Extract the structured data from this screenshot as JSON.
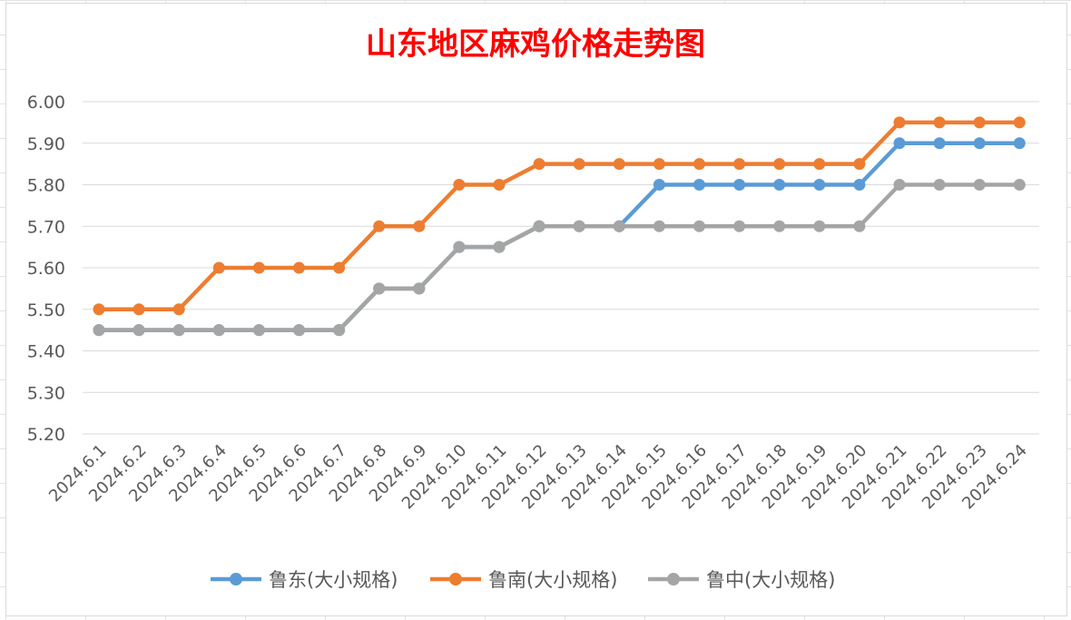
{
  "chart_data": {
    "type": "line",
    "title": "山东地区麻鸡价格走势图",
    "title_color": "#ff0000",
    "xlabel": "",
    "ylabel": "",
    "ylim": [
      5.2,
      6.0
    ],
    "yticks": [
      "5.20",
      "5.30",
      "5.40",
      "5.50",
      "5.60",
      "5.70",
      "5.80",
      "5.90",
      "6.00"
    ],
    "grid": true,
    "legend_position": "bottom",
    "categories": [
      "2024.6.1",
      "2024.6.2",
      "2024.6.3",
      "2024.6.4",
      "2024.6.5",
      "2024.6.6",
      "2024.6.7",
      "2024.6.8",
      "2024.6.9",
      "2024.6.10",
      "2024.6.11",
      "2024.6.12",
      "2024.6.13",
      "2024.6.14",
      "2024.6.15",
      "2024.6.16",
      "2024.6.17",
      "2024.6.18",
      "2024.6.19",
      "2024.6.20",
      "2024.6.21",
      "2024.6.22",
      "2024.6.23",
      "2024.6.24"
    ],
    "series": [
      {
        "name": "鲁东(大小规格)",
        "color": "#5b9bd5",
        "values": [
          5.45,
          5.45,
          5.45,
          5.45,
          5.45,
          5.45,
          5.45,
          5.55,
          5.55,
          5.65,
          5.65,
          5.7,
          5.7,
          5.7,
          5.8,
          5.8,
          5.8,
          5.8,
          5.8,
          5.8,
          5.9,
          5.9,
          5.9,
          5.9
        ]
      },
      {
        "name": "鲁南(大小规格)",
        "color": "#ed7d31",
        "values": [
          5.5,
          5.5,
          5.5,
          5.6,
          5.6,
          5.6,
          5.6,
          5.7,
          5.7,
          5.8,
          5.8,
          5.85,
          5.85,
          5.85,
          5.85,
          5.85,
          5.85,
          5.85,
          5.85,
          5.85,
          5.95,
          5.95,
          5.95,
          5.95
        ]
      },
      {
        "name": "鲁中(大小规格)",
        "color": "#a5a5a5",
        "values": [
          5.45,
          5.45,
          5.45,
          5.45,
          5.45,
          5.45,
          5.45,
          5.55,
          5.55,
          5.65,
          5.65,
          5.7,
          5.7,
          5.7,
          5.7,
          5.7,
          5.7,
          5.7,
          5.7,
          5.7,
          5.8,
          5.8,
          5.8,
          5.8
        ]
      }
    ]
  }
}
